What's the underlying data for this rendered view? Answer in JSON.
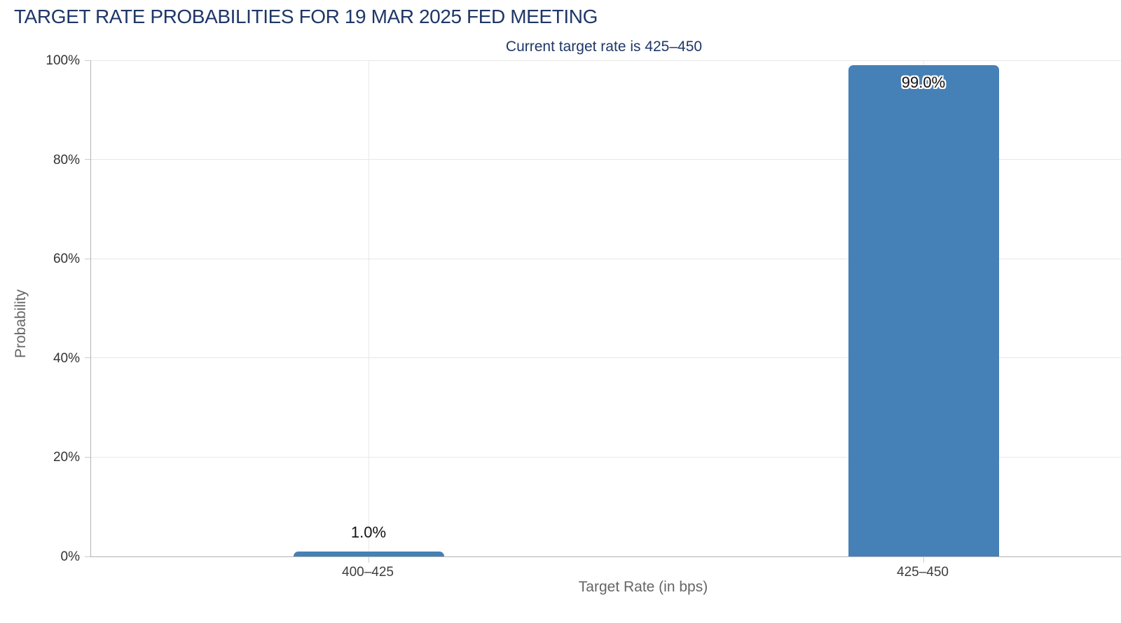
{
  "header": {
    "title": "TARGET RATE PROBABILITIES FOR 19 MAR 2025 FED MEETING",
    "subtitle": "Current target rate is 425–450"
  },
  "chart_data": {
    "type": "bar",
    "title": "TARGET RATE PROBABILITIES FOR 19 MAR 2025 FED MEETING",
    "subtitle": "Current target rate is 425–450",
    "categories": [
      "400–425",
      "425–450"
    ],
    "values": [
      1.0,
      99.0
    ],
    "value_labels": [
      "1.0%",
      "99.0%"
    ],
    "xlabel": "Target Rate (in bps)",
    "ylabel": "Probability",
    "ylim": [
      0,
      100
    ],
    "yticks": [
      0,
      20,
      40,
      60,
      80,
      100
    ],
    "ytick_labels": [
      "0%",
      "20%",
      "40%",
      "60%",
      "80%",
      "100%"
    ],
    "grid": true,
    "legend_position": "none",
    "bar_color": "#4580b7"
  },
  "colors": {
    "title_navy": "#1f3768",
    "bar_blue": "#4580b7",
    "gridline": "#e8e8e8",
    "axis_line": "#b3b3b3",
    "tick_text": "#333333",
    "axis_title_text": "#666666"
  }
}
